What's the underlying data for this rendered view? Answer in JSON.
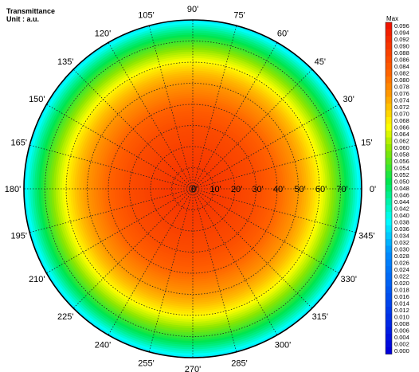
{
  "chart_data": {
    "type": "heatmap",
    "subtype": "polar",
    "title": "Transmittance",
    "unit_label": "Unit : a.u.",
    "angle_unit_suffix": "'",
    "angular_labels": [
      "0",
      "15",
      "30",
      "45",
      "60",
      "75",
      "90",
      "105",
      "120",
      "135",
      "150",
      "165",
      "180",
      "195",
      "210",
      "225",
      "240",
      "255",
      "270",
      "285",
      "300",
      "315",
      "330",
      "345"
    ],
    "radial_labels": [
      "0",
      "10",
      "20",
      "30",
      "40",
      "50",
      "60",
      "70"
    ],
    "radial_range": [
      0,
      80
    ],
    "value_range": [
      0,
      0.096
    ],
    "colorbar_max_label": "Max",
    "colorbar_ticks": [
      "0.096",
      "0.094",
      "0.092",
      "0.090",
      "0.088",
      "0.086",
      "0.084",
      "0.082",
      "0.080",
      "0.078",
      "0.076",
      "0.074",
      "0.072",
      "0.070",
      "0.068",
      "0.066",
      "0.064",
      "0.062",
      "0.060",
      "0.058",
      "0.056",
      "0.054",
      "0.052",
      "0.050",
      "0.048",
      "0.046",
      "0.044",
      "0.042",
      "0.040",
      "0.038",
      "0.036",
      "0.034",
      "0.032",
      "0.030",
      "0.028",
      "0.026",
      "0.024",
      "0.022",
      "0.020",
      "0.018",
      "0.016",
      "0.014",
      "0.012",
      "0.010",
      "0.008",
      "0.006",
      "0.004",
      "0.002",
      "0.000"
    ],
    "radial_profile": {
      "radius_deg": [
        0,
        10,
        20,
        30,
        40,
        50,
        55,
        60,
        65,
        70,
        75,
        78,
        80
      ],
      "value": [
        0.09,
        0.0895,
        0.088,
        0.086,
        0.082,
        0.076,
        0.072,
        0.067,
        0.061,
        0.054,
        0.046,
        0.04,
        0.036
      ]
    },
    "grid": true
  }
}
